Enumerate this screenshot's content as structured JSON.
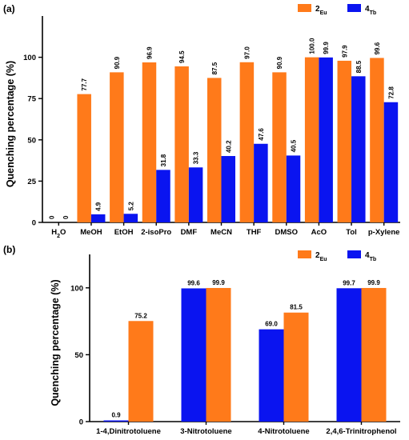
{
  "chart_data": [
    {
      "panel_label": "(a)",
      "type": "bar",
      "ylabel": "Quenching percentage (%)",
      "ylim": [
        0,
        125
      ],
      "yticks": [
        0,
        25,
        50,
        75,
        100
      ],
      "categories": [
        "H2O",
        "MeOH",
        "EtOH",
        "2-isoPro",
        "DMF",
        "MeCN",
        "THF",
        "DMSO",
        "AcO",
        "Tol",
        "p-Xylene"
      ],
      "series": [
        {
          "name": "2",
          "subscript": "Eu",
          "color": "#FF7A1A",
          "values": [
            0,
            77.7,
            90.9,
            96.9,
            94.5,
            87.5,
            97.0,
            90.9,
            100.0,
            97.9,
            99.6
          ],
          "labels": [
            "0",
            "77.7",
            "90.9",
            "96.9",
            "94.5",
            "87.5",
            "97.0",
            "90.9",
            "100.0",
            "97.9",
            "99.6"
          ]
        },
        {
          "name": "4",
          "subscript": "Tb",
          "color": "#0A14F0",
          "values": [
            0,
            4.9,
            5.2,
            31.8,
            33.3,
            40.2,
            47.6,
            40.5,
            99.9,
            88.5,
            72.8
          ],
          "labels": [
            "0",
            "4.9",
            "5.2",
            "31.8",
            "33.3",
            "40.2",
            "47.6",
            "40.5",
            "99.9",
            "88.5",
            "72.8"
          ]
        }
      ],
      "legend_position": "top-right"
    },
    {
      "panel_label": "(b)",
      "type": "bar",
      "ylabel": "Quenching percentage (%)",
      "ylim": [
        0,
        125
      ],
      "yticks": [
        0,
        50,
        100
      ],
      "categories": [
        "1-4,Dinitrotoluene",
        "3-Nitrotoluene",
        "4-Nitrotoluene",
        "2,4,6-Trinitrophenol"
      ],
      "series": [
        {
          "name": "4",
          "subscript": "Tb",
          "color": "#0A14F0",
          "values": [
            0.9,
            99.6,
            69.0,
            99.7
          ],
          "labels": [
            "0.9",
            "99.6",
            "69.0",
            "99.7"
          ]
        },
        {
          "name": "2",
          "subscript": "Eu",
          "color": "#FF7A1A",
          "values": [
            75.2,
            99.9,
            81.5,
            99.9
          ],
          "labels": [
            "75.2",
            "99.9",
            "81.5",
            "99.9"
          ]
        }
      ],
      "legend_order": [
        1,
        0
      ],
      "legend_position": "top-right"
    }
  ]
}
